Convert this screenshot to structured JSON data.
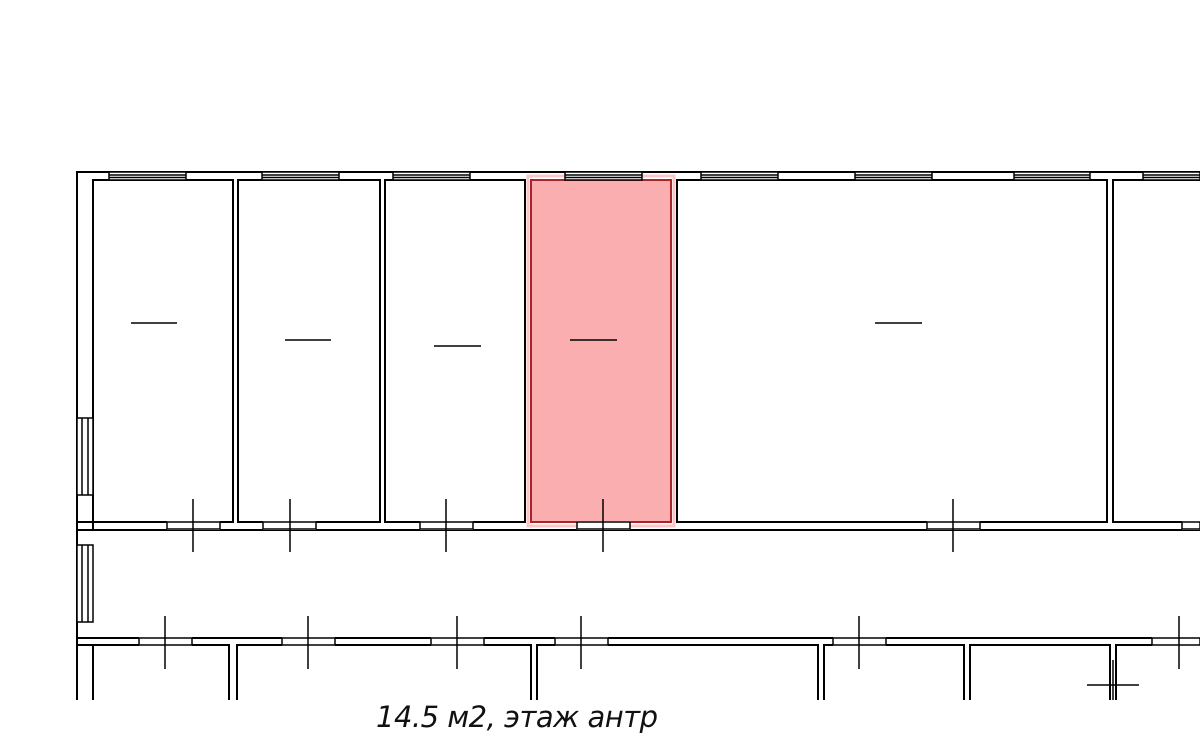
{
  "plan": {
    "caption": "14.5 м2, этаж антр",
    "highlight_fill": "#fbaeb0",
    "highlight_stroke": "#a8262a",
    "wall_color": "#000000",
    "selected_room": 4
  }
}
